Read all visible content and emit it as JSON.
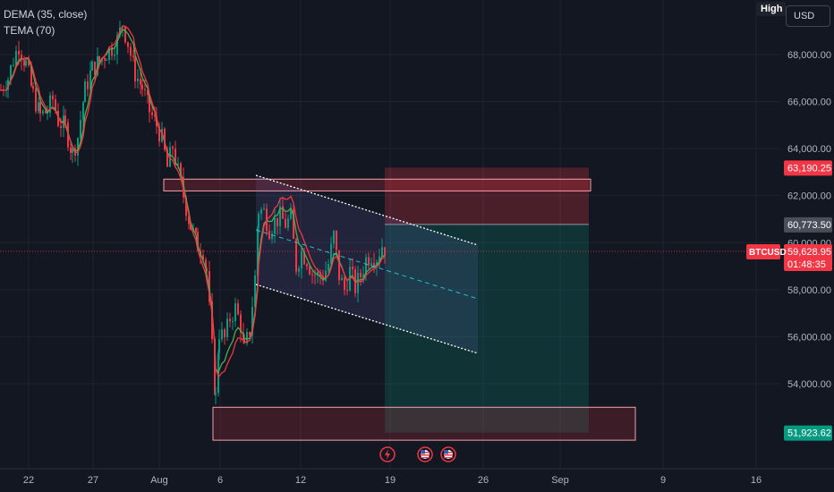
{
  "indicators": [
    "DEMA (35, close)",
    "TEMA (70)"
  ],
  "scale_mode": "High",
  "currency": "USD",
  "symbol": "BTCUSD",
  "countdown": "01:48:35",
  "price_badges": {
    "stop": "63,190.25",
    "entry": "60,773.50",
    "current": "59,628.95",
    "target": "51,923.62"
  },
  "colors": {
    "background": "#131722",
    "up": "#089981",
    "down": "#f23645",
    "dema": "#4caf50",
    "tema": "#f23645",
    "channel": "#ffffff",
    "badge_stop": "#f23645",
    "badge_entry": "#4a4e59",
    "badge_target": "#089981"
  },
  "chart_data": {
    "type": "candlestick",
    "symbol": "BTCUSD",
    "y_axis_ticks": [
      54000,
      56000,
      58000,
      60000,
      62000,
      64000,
      66000,
      68000
    ],
    "y_axis_labels": [
      "54,000.00",
      "56,000.00",
      "58,000.00",
      "60,000.00",
      "62,000.00",
      "64,000.00",
      "66,000.00",
      "68,000.00"
    ],
    "x_axis_labels": [
      "22",
      "27",
      "Aug",
      "6",
      "12",
      "19",
      "26",
      "Sep",
      "9",
      "16"
    ],
    "last_price": 59628.95,
    "position": {
      "kind": "short",
      "entry": 60773.5,
      "stop": 63190.25,
      "target": 51923.62
    },
    "zones": [
      {
        "kind": "resistance",
        "from": 62200,
        "to": 62700
      },
      {
        "kind": "support",
        "from": 51600,
        "to": 53000
      }
    ],
    "series": [
      {
        "name": "DEMA (35, close)",
        "color": "#4caf50"
      },
      {
        "name": "TEMA (70)",
        "color": "#f23645"
      }
    ],
    "event_icons": [
      "lightning",
      "us-flag",
      "us-flag"
    ]
  }
}
